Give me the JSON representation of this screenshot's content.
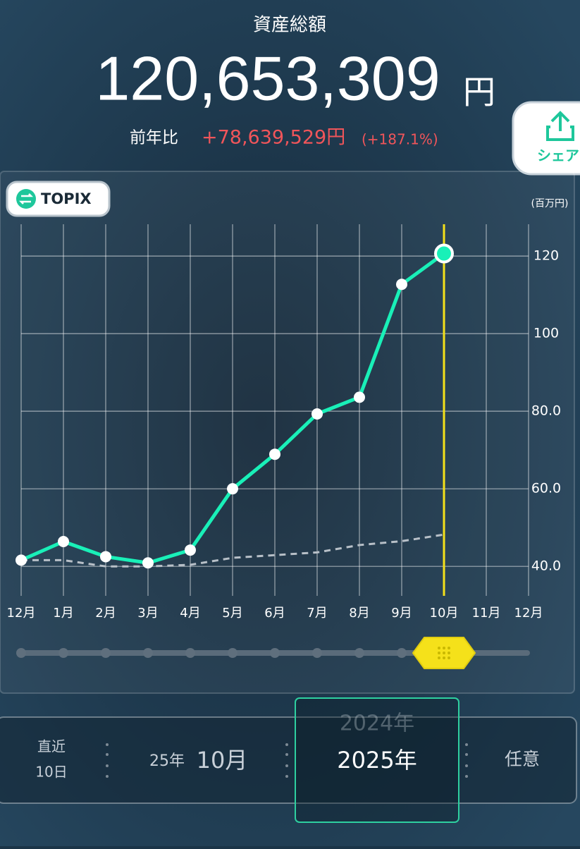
{
  "header": {
    "title": "資産総額",
    "total": "120,653,309",
    "unit": "円",
    "yoy_label": "前年比",
    "yoy_value": "+78,639,529円",
    "yoy_pct": "(+187.1%)"
  },
  "share_button": "シェア",
  "benchmark_button": "TOPIX",
  "chart_data": {
    "type": "line",
    "y_unit_label": "(百万円)",
    "categories": [
      "12月",
      "1月",
      "2月",
      "3月",
      "4月",
      "5月",
      "6月",
      "7月",
      "8月",
      "9月",
      "10月",
      "11月",
      "12月"
    ],
    "series": [
      {
        "name": "資産総額",
        "color": "#19f0b8",
        "style": "solid",
        "values": [
          41.6,
          46.4,
          42.5,
          40.9,
          44.2,
          60.0,
          68.9,
          79.3,
          83.6,
          112.7,
          120.65,
          null,
          null
        ]
      },
      {
        "name": "TOPIX",
        "color": "#b8c0c8",
        "style": "dashed",
        "values": [
          41.6,
          41.6,
          40.0,
          40.0,
          40.4,
          42.2,
          42.9,
          43.6,
          45.5,
          46.5,
          48.2,
          null,
          null
        ]
      }
    ],
    "ylim": [
      32.4,
      128.2
    ],
    "yticks": [
      {
        "value": 40,
        "label": "40.0"
      },
      {
        "value": 60,
        "label": "60.0"
      },
      {
        "value": 80,
        "label": "80.0"
      },
      100,
      120
    ],
    "grid": true
  },
  "period_selector": {
    "recent": [
      "直近",
      "10日"
    ],
    "month_year": "25年",
    "month": "10月",
    "year_prev": "2024年",
    "year": "2025年",
    "custom": "任意"
  }
}
